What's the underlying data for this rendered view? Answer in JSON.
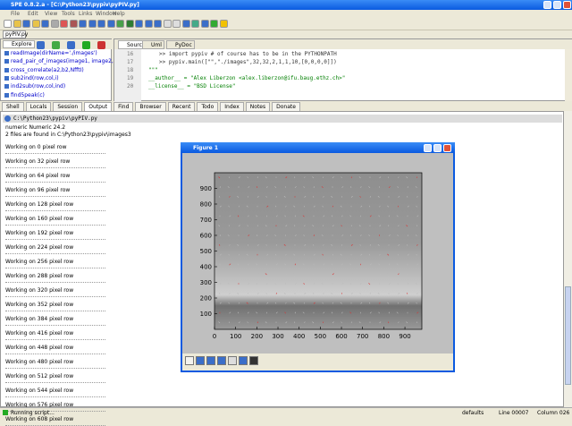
{
  "window": {
    "title": "SPE 0.8.2.a - [C:\\Python23\\pypiv\\pyPIV.py]"
  },
  "menu": [
    "File",
    "Edit",
    "View",
    "Tools",
    "Links",
    "Window",
    "Help"
  ],
  "file_tab": "pyPIV.py",
  "left_tabs": [
    "Explore"
  ],
  "outline": [
    "readImage(dirName='./images')",
    "read_pair_of_images(image1, image2, crop_vect",
    "cross_correlate(a2,b2,NfftI)",
    "sub2ind(row,col,i)",
    "ind2sub(row,col,ind)",
    "find5peak(c)"
  ],
  "editor_tabs": [
    "Source",
    "Uml",
    "PyDoc"
  ],
  "code": {
    "line_numbers": [
      16,
      17,
      18,
      19,
      20
    ],
    "lines": [
      ">> import pypiv # of course has to be in the PYTHONPATH",
      ">> pypiv.main([\"\",\"./images\",32,32,2,1,1,10,[0,0,0,0]])",
      "\"\"\"",
      "__author__ = \"Alex Liberzon <alex.liberzon@ifu.baug.ethz.ch>\"",
      "__license__ = \"BSD License\""
    ]
  },
  "bottom_tabs": [
    "Shell",
    "Locals",
    "Session",
    "Output",
    "Find",
    "Browser",
    "Recent",
    "Todo",
    "Index",
    "Notes",
    "Donate"
  ],
  "output": {
    "path": "C:\\Python23\\pypiv\\pyPIV.py",
    "lines": [
      "numeric Numeric 24.2",
      "2 files are found in C:\\Python23\\pypiv\\images3"
    ],
    "progress": [
      "Working on 0 pixel row",
      "Working on 32 pixel row",
      "Working on 64 pixel row",
      "Working on 96 pixel row",
      "Working on 128 pixel row",
      "Working on 160 pixel row",
      "Working on 192 pixel row",
      "Working on 224 pixel row",
      "Working on 256 pixel row",
      "Working on 288 pixel row",
      "Working on 320 pixel row",
      "Working on 352 pixel row",
      "Working on 384 pixel row",
      "Working on 416 pixel row",
      "Working on 448 pixel row",
      "Working on 480 pixel row",
      "Working on 512 pixel row",
      "Working on 544 pixel row",
      "Working on 576 pixel row",
      "Working on 608 pixel row"
    ]
  },
  "figure": {
    "title": "Figure 1",
    "xlim": [
      0,
      980
    ],
    "ylim": [
      0,
      1000
    ],
    "xticks": [
      0,
      100,
      200,
      300,
      400,
      500,
      600,
      700,
      800,
      900
    ],
    "yticks": [
      100,
      200,
      300,
      400,
      500,
      600,
      700,
      800,
      900
    ]
  },
  "status": {
    "message": "Running script...",
    "profile": "defaults",
    "line": "Line 00007",
    "column": "Column 026"
  }
}
